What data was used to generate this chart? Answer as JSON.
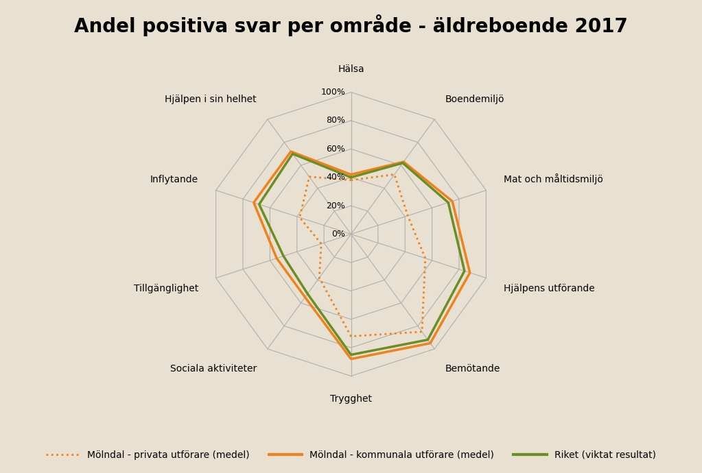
{
  "title": "Andel positiva svar per område - äldreboende 2017",
  "categories": [
    "Hälsa",
    "Boendemiljö",
    "Mat och måltidsmiljö",
    "Hjälpens utförande",
    "Bemötande",
    "Trygghet",
    "Sociala aktiviteter",
    "Tillgänglighet",
    "Inflytande",
    "Hjälpen i sin helhet"
  ],
  "kommunala": [
    42,
    63,
    75,
    88,
    95,
    88,
    55,
    55,
    72,
    72
  ],
  "privata": [
    38,
    52,
    42,
    55,
    85,
    72,
    38,
    22,
    38,
    50
  ],
  "riket": [
    40,
    62,
    72,
    84,
    92,
    85,
    52,
    50,
    68,
    70
  ],
  "color_kommunala": "#F0821E",
  "color_privata": "#F0821E",
  "color_riket": "#6B8E23",
  "background_color": "#E8E0D0",
  "grid_color": "#B0B0B0",
  "r_max": 100,
  "r_ticks": [
    0,
    20,
    40,
    60,
    80,
    100
  ],
  "r_tick_labels": [
    "0%",
    "20%",
    "40%",
    "60%",
    "80%",
    "100%"
  ],
  "legend_labels": [
    "Mölndal - privata utförare (medel)",
    "Mölndal - kommunala utförare (medel)",
    "Riket (viktat resultat)"
  ],
  "title_fontsize": 20,
  "label_fontsize": 10,
  "tick_fontsize": 9
}
